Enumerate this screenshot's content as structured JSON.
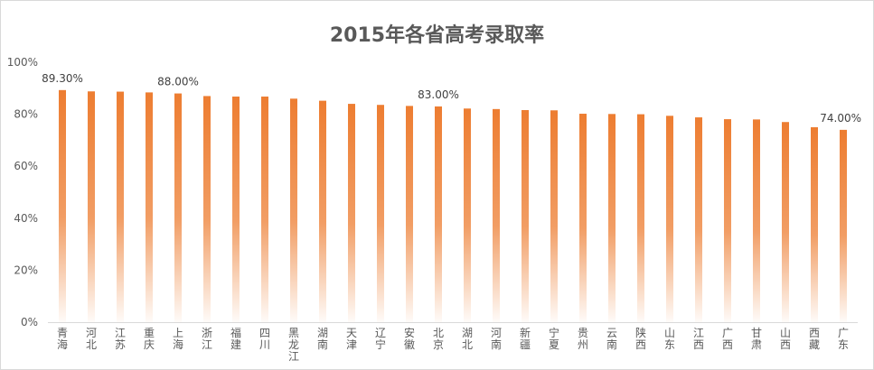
{
  "chart_data": {
    "type": "bar",
    "title": "2015年各省高考录取率",
    "categories": [
      "青海",
      "河北",
      "江苏",
      "重庆",
      "上海",
      "浙江",
      "福建",
      "四川",
      "黑龙江",
      "湖南",
      "天津",
      "辽宁",
      "安徽",
      "北京",
      "湖北",
      "河南",
      "新疆",
      "宁夏",
      "贵州",
      "云南",
      "陕西",
      "山东",
      "江西",
      "广西",
      "甘肃",
      "山西",
      "西藏",
      "广东"
    ],
    "values": [
      89.3,
      88.8,
      88.7,
      88.4,
      88.0,
      87.0,
      86.8,
      86.8,
      86.0,
      85.2,
      84.0,
      83.6,
      83.2,
      83.0,
      82.2,
      82.0,
      81.6,
      81.5,
      80.2,
      80.1,
      80.0,
      79.4,
      78.8,
      78.1,
      78.0,
      77.0,
      75.0,
      74.0
    ],
    "data_labels": [
      {
        "index": 0,
        "text": "89.30%"
      },
      {
        "index": 4,
        "text": "88.00%"
      },
      {
        "index": 13,
        "text": "83.00%"
      },
      {
        "index": 27,
        "text": "74.00%"
      }
    ],
    "yticks": [
      "0%",
      "20%",
      "40%",
      "60%",
      "80%",
      "100%"
    ],
    "ylim": [
      0,
      100
    ],
    "xlabel": "",
    "ylabel": "",
    "grid": false,
    "bar_color": "#ED7D31"
  }
}
